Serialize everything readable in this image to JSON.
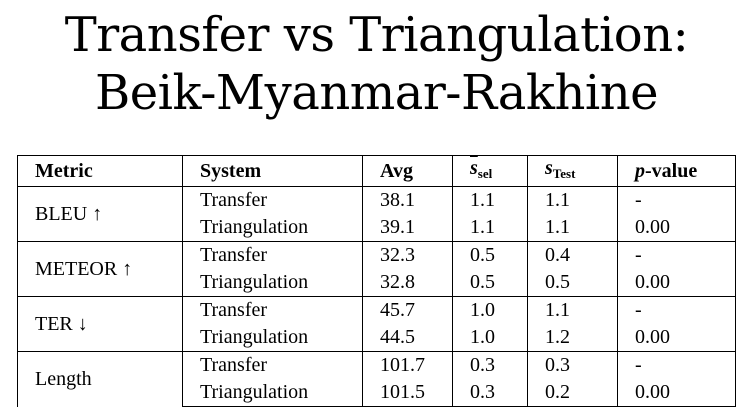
{
  "title": {
    "line1": "Transfer vs Triangulation:",
    "line2": "Beik-Myanmar-Rakhine"
  },
  "table": {
    "headers": {
      "metric": "Metric",
      "system": "System",
      "avg": "Avg",
      "s_sel_base": "s",
      "s_sel_sub": "sel",
      "s_test_base": "s",
      "s_test_sub": "Test",
      "p_italic": "p",
      "p_rest": "-value"
    },
    "groups": [
      {
        "metric": "BLEU ↑",
        "rows": [
          {
            "system": "Transfer",
            "avg": "38.1",
            "s_sel": "1.1",
            "s_test": "1.1",
            "p": "-"
          },
          {
            "system": "Triangulation",
            "avg": "39.1",
            "s_sel": "1.1",
            "s_test": "1.1",
            "p": "0.00"
          }
        ]
      },
      {
        "metric": "METEOR ↑",
        "rows": [
          {
            "system": "Transfer",
            "avg": "32.3",
            "s_sel": "0.5",
            "s_test": "0.4",
            "p": "-"
          },
          {
            "system": "Triangulation",
            "avg": "32.8",
            "s_sel": "0.5",
            "s_test": "0.5",
            "p": "0.00"
          }
        ]
      },
      {
        "metric": "TER ↓",
        "rows": [
          {
            "system": "Transfer",
            "avg": "45.7",
            "s_sel": "1.0",
            "s_test": "1.1",
            "p": "-"
          },
          {
            "system": "Triangulation",
            "avg": "44.5",
            "s_sel": "1.0",
            "s_test": "1.2",
            "p": "0.00"
          }
        ]
      },
      {
        "metric": "Length",
        "rows": [
          {
            "system": "Transfer",
            "avg": "101.7",
            "s_sel": "0.3",
            "s_test": "0.3",
            "p": "-"
          },
          {
            "system": "Triangulation",
            "avg": "101.5",
            "s_sel": "0.3",
            "s_test": "0.2",
            "p": "0.00"
          }
        ]
      }
    ]
  }
}
